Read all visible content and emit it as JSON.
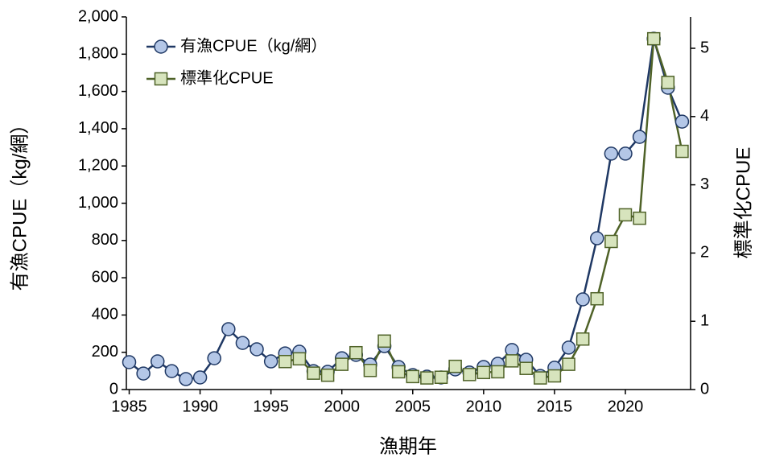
{
  "chart_data": {
    "type": "line",
    "xlabel": "漁期年",
    "ylabel": "有漁CPUE（kg/網）",
    "y2label": "標準化CPUE",
    "x": [
      1985,
      1986,
      1987,
      1988,
      1989,
      1990,
      1991,
      1992,
      1993,
      1994,
      1995,
      1996,
      1997,
      1998,
      1999,
      2000,
      2001,
      2002,
      2003,
      2004,
      2005,
      2006,
      2007,
      2008,
      2009,
      2010,
      2011,
      2012,
      2013,
      2014,
      2015,
      2016,
      2017,
      2018,
      2019,
      2020,
      2021,
      2022,
      2023,
      2024
    ],
    "series": [
      {
        "name": "有漁CPUE（kg/網）",
        "color": "#1f3864",
        "marker_color": "#b4c7e7",
        "marker": "circle",
        "values": [
          147,
          86,
          151,
          99,
          56,
          65,
          168,
          324,
          250,
          216,
          151,
          194,
          203,
          99,
          95,
          168,
          186,
          134,
          233,
          121,
          78,
          69,
          65,
          108,
          91,
          121,
          138,
          212,
          160,
          73,
          117,
          225,
          484,
          812,
          1266,
          1266,
          1356,
          1883,
          1620,
          1438
        ]
      },
      {
        "name": "標準化CPUE",
        "color": "#4f6228",
        "marker_color": "#d7e4bd",
        "marker": "square",
        "axis": "y2",
        "values": [
          null,
          null,
          null,
          null,
          null,
          null,
          null,
          null,
          null,
          null,
          null,
          0.41,
          0.45,
          0.24,
          0.21,
          0.37,
          0.54,
          0.28,
          0.71,
          0.26,
          0.19,
          0.17,
          0.18,
          0.34,
          0.22,
          0.25,
          0.26,
          0.42,
          0.31,
          0.17,
          0.2,
          0.37,
          0.74,
          1.33,
          2.17,
          2.56,
          2.51,
          5.14,
          4.5,
          3.49
        ]
      }
    ],
    "xlim": [
      1984.8,
      2024.6
    ],
    "xticks": [
      1985,
      1990,
      1995,
      2000,
      2005,
      2010,
      2015,
      2020
    ],
    "ylim": [
      0,
      2000
    ],
    "yticks": [
      0,
      200,
      400,
      600,
      800,
      {
        "value": 1000,
        "label": "1,000"
      },
      {
        "value": 1200,
        "label": "1,200"
      },
      {
        "value": 1400,
        "label": "1,400"
      },
      {
        "value": 1600,
        "label": "1,600"
      },
      {
        "value": 1800,
        "label": "1,800"
      },
      {
        "value": 2000,
        "label": "2,000"
      }
    ],
    "y2lim": [
      0,
      5.46
    ],
    "y2ticks": [
      0,
      1,
      2,
      3,
      4,
      5
    ],
    "grid": false,
    "legend": "upper left"
  }
}
